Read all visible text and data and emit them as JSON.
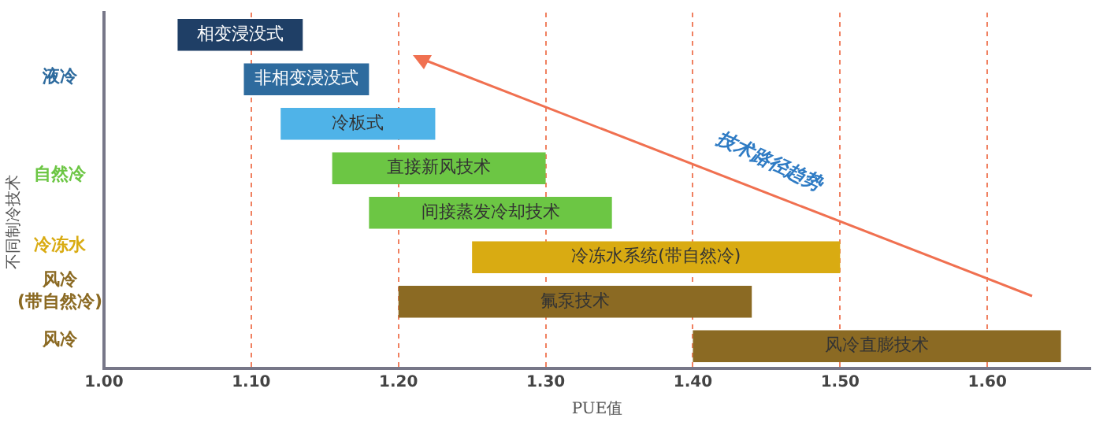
{
  "chart_data": {
    "type": "bar",
    "orientation": "horizontal",
    "xlabel": "PUE值",
    "ylabel": "不同制冷技术",
    "categories": [
      "相变浸没式",
      "非相变浸没式",
      "冷板式",
      "直接新风技术",
      "间接蒸发冷却技术",
      "冷冻水系统(带自然冷)",
      "氟泵技术",
      "风冷直膨技术"
    ],
    "base": [
      1.05,
      1.095,
      1.12,
      1.155,
      1.18,
      1.25,
      1.2,
      1.4
    ],
    "values": [
      0.085,
      0.085,
      0.105,
      0.145,
      0.165,
      0.25,
      0.24,
      0.25
    ],
    "colors": [
      "#1f3f66",
      "#2e6b9e",
      "#4fb3e8",
      "#6cc644",
      "#6cc644",
      "#d9ab12",
      "#8b6a23",
      "#8b6a23"
    ],
    "xlim": [
      1.0,
      1.67
    ],
    "xticks": [
      {
        "value": 1.0,
        "label": "1.00"
      },
      {
        "value": 1.1,
        "label": "1.10"
      },
      {
        "value": 1.2,
        "label": "1.20"
      },
      {
        "value": 1.3,
        "label": "1.30"
      },
      {
        "value": 1.4,
        "label": "1.40"
      },
      {
        "value": 1.5,
        "label": "1.50"
      },
      {
        "value": 1.6,
        "label": "1.60"
      }
    ],
    "grid": "x",
    "legend": false,
    "annotations": [
      "液冷",
      "自然冷",
      "冷冻水",
      "风冷\n(带自然冷)",
      "风冷",
      "技术路径趋势"
    ]
  }
}
